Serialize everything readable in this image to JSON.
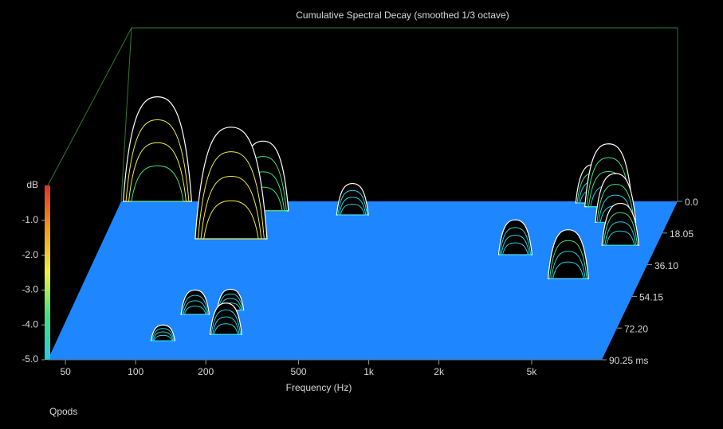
{
  "chart_data": {
    "type": "waterfall",
    "title": "Cumulative Spectral Decay (smoothed 1/3 octave)",
    "x_label": "Frequency (Hz)",
    "y_label": "dB",
    "footer": "Qpods",
    "log_x": true,
    "xlim": [
      42,
      10000
    ],
    "xticks": [
      50,
      100,
      200,
      500,
      {
        "value": 1000,
        "label": "1k"
      },
      {
        "value": 2000,
        "label": "2k"
      },
      {
        "value": 5000,
        "label": "5k"
      }
    ],
    "ylim": [
      -5,
      0
    ],
    "yticks": [
      {
        "value": -1,
        "label": "-1.0"
      },
      {
        "value": -2,
        "label": "-2.0"
      },
      {
        "value": -3,
        "label": "-3.0"
      },
      {
        "value": -4,
        "label": "-4.0"
      },
      {
        "value": -5,
        "label": "-5.0"
      }
    ],
    "zlim": [
      0,
      90.25
    ],
    "zticks": [
      {
        "value": 0,
        "label": "0.0"
      },
      {
        "value": 18.05,
        "label": "18.05"
      },
      {
        "value": 36.1,
        "label": "36.10"
      },
      {
        "value": 54.15,
        "label": "54.15"
      },
      {
        "value": 72.2,
        "label": "72.20"
      },
      {
        "value": 90.25,
        "label": "90.25 ms"
      }
    ],
    "floor_color": "#1e86ff",
    "wall_color": "#2f7a2f",
    "colormap": [
      "#e0302a",
      "#f09a20",
      "#eef040",
      "#40e080",
      "#20d0e0"
    ],
    "peaks": [
      {
        "freq": 60,
        "time": 0,
        "level": -2.0
      },
      {
        "freq": 4400,
        "time": 0.9,
        "level": -3.9
      },
      {
        "freq": 5200,
        "time": 3,
        "level": -3.2
      },
      {
        "freq": 177,
        "time": 5.4,
        "level": -3.0
      },
      {
        "freq": 435,
        "time": 7.7,
        "level": -4.1
      },
      {
        "freq": 6000,
        "time": 12,
        "level": -3.6
      },
      {
        "freq": 147,
        "time": 21.3,
        "level": -1.8
      },
      {
        "freq": 7000,
        "time": 25,
        "level": -3.8
      },
      {
        "freq": 2600,
        "time": 30.4,
        "level": -4.0
      },
      {
        "freq": 4900,
        "time": 44,
        "level": -3.6
      },
      {
        "freq": 203,
        "time": 62,
        "level": -4.4
      },
      {
        "freq": 146,
        "time": 64.4,
        "level": -4.3
      },
      {
        "freq": 217,
        "time": 75.8,
        "level": -4.1
      },
      {
        "freq": 120,
        "time": 79.4,
        "level": -4.55
      }
    ]
  }
}
